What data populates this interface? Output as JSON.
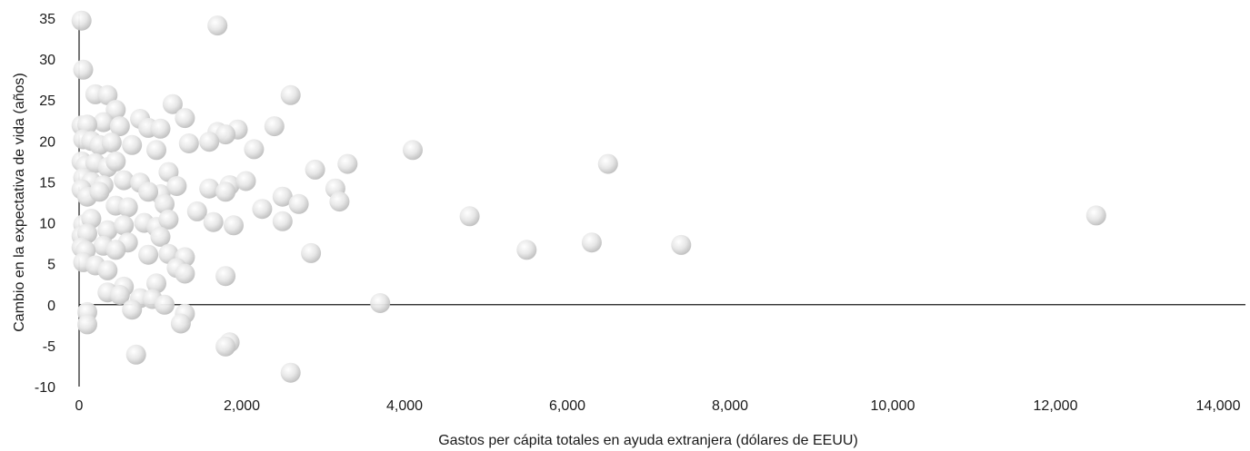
{
  "chart_data": {
    "type": "scatter",
    "title": "",
    "xlabel": "Gastos per cápita totales en ayuda extranjera (dólares de EEUU)",
    "ylabel": "Cambio en la expectativa de vida (años)",
    "xlim": [
      0,
      14000
    ],
    "ylim": [
      -10,
      35
    ],
    "grid": false,
    "legend": "none",
    "x_ticks": [
      "0",
      "2,000",
      "4,000",
      "6,000",
      "8,000",
      "10,000",
      "12,000",
      "14,000"
    ],
    "y_ticks": [
      "-10",
      "-5",
      "0",
      "5",
      "10",
      "15",
      "20",
      "25",
      "30",
      "35"
    ],
    "marker_color": "#dcdcdc",
    "series": [
      {
        "points": [
          [
            30,
            34.7
          ],
          [
            1700,
            34.1
          ],
          [
            50,
            28.7
          ],
          [
            200,
            25.7
          ],
          [
            350,
            25.6
          ],
          [
            2600,
            25.6
          ],
          [
            1150,
            24.5
          ],
          [
            450,
            23.8
          ],
          [
            750,
            22.7
          ],
          [
            1300,
            22.8
          ],
          [
            300,
            22.3
          ],
          [
            2400,
            21.8
          ],
          [
            30,
            21.9
          ],
          [
            100,
            22.0
          ],
          [
            500,
            21.8
          ],
          [
            850,
            21.6
          ],
          [
            1000,
            21.5
          ],
          [
            1700,
            21.1
          ],
          [
            1950,
            21.4
          ],
          [
            1800,
            20.8
          ],
          [
            50,
            20.2
          ],
          [
            150,
            20.0
          ],
          [
            250,
            19.5
          ],
          [
            400,
            19.8
          ],
          [
            650,
            19.5
          ],
          [
            1350,
            19.7
          ],
          [
            1600,
            19.9
          ],
          [
            950,
            18.9
          ],
          [
            2150,
            19.0
          ],
          [
            4100,
            18.9
          ],
          [
            30,
            17.5
          ],
          [
            80,
            17.0
          ],
          [
            200,
            17.3
          ],
          [
            350,
            16.8
          ],
          [
            450,
            17.5
          ],
          [
            1100,
            16.2
          ],
          [
            2900,
            16.5
          ],
          [
            3300,
            17.2
          ],
          [
            6500,
            17.2
          ],
          [
            50,
            15.5
          ],
          [
            150,
            15.0
          ],
          [
            300,
            14.6
          ],
          [
            550,
            15.2
          ],
          [
            750,
            14.9
          ],
          [
            1000,
            13.5
          ],
          [
            1200,
            14.5
          ],
          [
            1600,
            14.2
          ],
          [
            1850,
            14.6
          ],
          [
            2050,
            15.1
          ],
          [
            3150,
            14.2
          ],
          [
            30,
            14.1
          ],
          [
            100,
            13.2
          ],
          [
            250,
            13.8
          ],
          [
            450,
            12.1
          ],
          [
            600,
            11.9
          ],
          [
            850,
            13.8
          ],
          [
            1050,
            12.3
          ],
          [
            1800,
            13.8
          ],
          [
            2500,
            13.2
          ],
          [
            3200,
            12.6
          ],
          [
            2700,
            12.3
          ],
          [
            2250,
            11.7
          ],
          [
            1450,
            11.4
          ],
          [
            50,
            9.8
          ],
          [
            150,
            10.5
          ],
          [
            350,
            9.1
          ],
          [
            550,
            9.7
          ],
          [
            800,
            10.0
          ],
          [
            950,
            9.5
          ],
          [
            1100,
            10.4
          ],
          [
            1650,
            10.1
          ],
          [
            1900,
            9.7
          ],
          [
            2500,
            10.2
          ],
          [
            4800,
            10.8
          ],
          [
            12500,
            10.9
          ],
          [
            30,
            8.4
          ],
          [
            100,
            8.7
          ],
          [
            300,
            7.2
          ],
          [
            600,
            7.6
          ],
          [
            1000,
            8.3
          ],
          [
            30,
            7.0
          ],
          [
            80,
            6.6
          ],
          [
            50,
            5.2
          ],
          [
            200,
            4.8
          ],
          [
            450,
            6.7
          ],
          [
            850,
            6.1
          ],
          [
            1100,
            6.2
          ],
          [
            1300,
            5.8
          ],
          [
            2850,
            6.3
          ],
          [
            5500,
            6.7
          ],
          [
            6300,
            7.6
          ],
          [
            7400,
            7.3
          ],
          [
            350,
            4.2
          ],
          [
            550,
            2.2
          ],
          [
            950,
            2.6
          ],
          [
            1200,
            4.5
          ],
          [
            1300,
            3.8
          ],
          [
            1800,
            3.5
          ],
          [
            350,
            1.5
          ],
          [
            500,
            1.2
          ],
          [
            750,
            0.8
          ],
          [
            900,
            0.7
          ],
          [
            1050,
            0.0
          ],
          [
            3700,
            0.2
          ],
          [
            100,
            -0.9
          ],
          [
            650,
            -0.6
          ],
          [
            1300,
            -1.1
          ],
          [
            100,
            -2.4
          ],
          [
            1250,
            -2.3
          ],
          [
            1850,
            -4.6
          ],
          [
            1800,
            -5.1
          ],
          [
            700,
            -6.1
          ],
          [
            2600,
            -8.3
          ]
        ]
      }
    ]
  }
}
